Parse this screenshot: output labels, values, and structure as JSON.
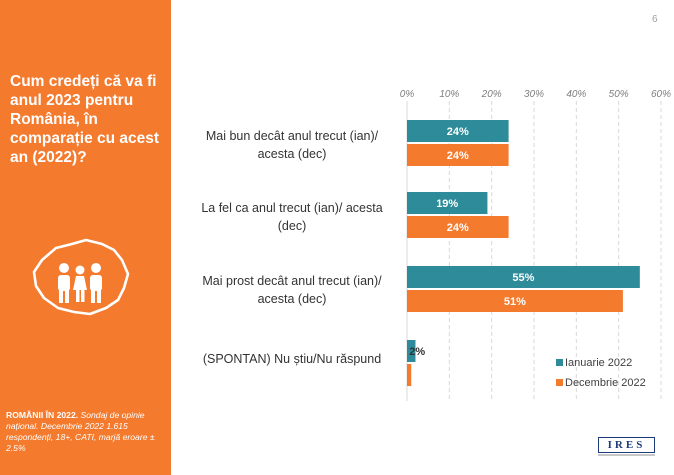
{
  "sidebar": {
    "question": "Cum credeți că va fi anul 2023 pentru România, în comparație cu acest an (2022)?",
    "note_bold": "ROMÂNII ÎN 2022.",
    "note_text": " Sondaj de opinie național. Decembrie 2022 1.615 respondenți, 18+, CATI, marjă eroare ± 2.5%",
    "icon": "romania-map-people-icon"
  },
  "page_number": "6",
  "logo": {
    "text": "IRES"
  },
  "colors": {
    "orange": "#f47a2e",
    "teal": "#2e8b9a",
    "sidebar": "#f47a2e"
  },
  "chart_data": {
    "type": "bar",
    "orientation": "horizontal",
    "categories": [
      "Mai bun decât anul trecut (ian)/ acesta (dec)",
      "La fel ca anul trecut (ian)/ acesta (dec)",
      "Mai prost decât anul trecut (ian)/ acesta (dec)",
      "(SPONTAN) Nu știu/Nu răspund"
    ],
    "series": [
      {
        "name": "Ianuarie 2022",
        "color": "#2e8b9a",
        "values": [
          24,
          19,
          55,
          2
        ],
        "labels": [
          "24%",
          "19%",
          "55%",
          "2%"
        ]
      },
      {
        "name": "Decembrie 2022",
        "color": "#f47a2e",
        "values": [
          24,
          24,
          51,
          1
        ],
        "labels": [
          "24%",
          "24%",
          "51%",
          ""
        ]
      }
    ],
    "xlim": [
      0,
      60
    ],
    "ticks": [
      "0%",
      "10%",
      "20%",
      "30%",
      "40%",
      "50%",
      "60%"
    ],
    "grid": true,
    "legend_position": "bottom-right"
  }
}
